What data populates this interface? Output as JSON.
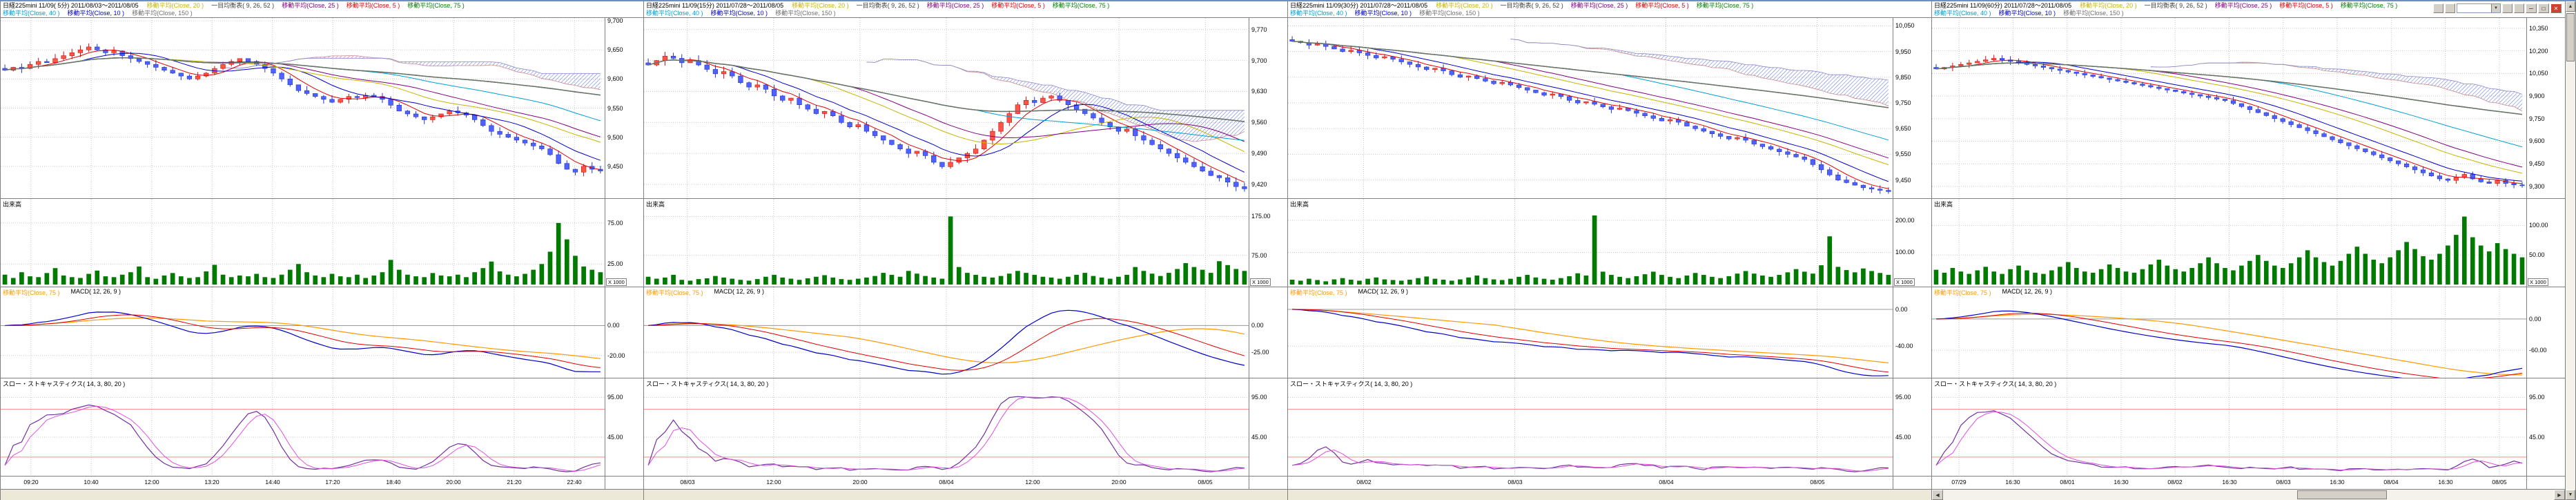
{
  "app": {
    "background": "#ffffff",
    "frame_color": "#6f8fc0"
  },
  "toolbar": {
    "combo_arrow": "▼",
    "window_buttons": [
      {
        "name": "minimize",
        "glyph": "─"
      },
      {
        "name": "maximize",
        "glyph": "□"
      },
      {
        "name": "close",
        "glyph": "✕"
      }
    ]
  },
  "scrollbar": {
    "left": "◀",
    "right": "▶",
    "up": "▲",
    "down": "▼"
  },
  "labels": {
    "volume": "出来高",
    "volume_unit": "X 1000",
    "macd_ma": "移動平均(Close, 75 )",
    "macd": "MACD( 12, 26, 9 )",
    "stoch": "スロー・ストキャスティクス( 14, 3, 80, 20 )"
  },
  "legend": {
    "row1": [
      {
        "label": "移動平均(Close, 20 )",
        "color": "#c8b400"
      },
      {
        "label": "一目均衡表( 9, 26, 52 )",
        "color": "#404040"
      },
      {
        "label": "移動平均(Close, 25 )",
        "color": "#800080"
      },
      {
        "label": "移動平均(Close, 5 )",
        "color": "#e00000"
      },
      {
        "label": "移動平均(Close, 75 )",
        "color": "#008000"
      }
    ],
    "row2": [
      {
        "label": "移動平均(Close, 40 )",
        "color": "#00a0d0"
      },
      {
        "label": "移動平均(Close, 10 )",
        "color": "#0000cc"
      },
      {
        "label": "移動平均(Close, 150 )",
        "color": "#707070"
      }
    ]
  },
  "ma_lines": [
    {
      "period": 5,
      "color": "#e00000"
    },
    {
      "period": 10,
      "color": "#0000cc"
    },
    {
      "period": 20,
      "color": "#c8b400"
    },
    {
      "period": 25,
      "color": "#800080"
    },
    {
      "period": 40,
      "color": "#00a0d0"
    },
    {
      "period": 75,
      "color": "#008000"
    },
    {
      "period": 150,
      "color": "#707070"
    }
  ],
  "indicators": {
    "ichimoku": {
      "tenkan": 9,
      "kijun": 26,
      "senkou": 52
    },
    "macd": {
      "fast": 12,
      "slow": 26,
      "signal": 9
    },
    "slow_stochastics": {
      "k": 14,
      "slowing": 3,
      "upper": 80,
      "lower": 20
    }
  },
  "chart_data": [
    {
      "type": "candlestick",
      "title": "日経225mini 11/09( 5分)  2011/08/03～2011/08/05",
      "interval": "5分",
      "closes": [
        9615,
        9620,
        9618,
        9625,
        9630,
        9628,
        9635,
        9640,
        9645,
        9650,
        9655,
        9650,
        9645,
        9648,
        9640,
        9635,
        9630,
        9625,
        9620,
        9615,
        9610,
        9605,
        9600,
        9605,
        9610,
        9618,
        9625,
        9630,
        9635,
        9630,
        9625,
        9618,
        9610,
        9600,
        9590,
        9580,
        9575,
        9570,
        9565,
        9560,
        9565,
        9570,
        9568,
        9572,
        9570,
        9565,
        9555,
        9545,
        9540,
        9535,
        9530,
        9535,
        9540,
        9545,
        9542,
        9538,
        9530,
        9520,
        9510,
        9505,
        9500,
        9495,
        9490,
        9485,
        9480,
        9470,
        9455,
        9445,
        9440,
        9450,
        9445,
        9442
      ],
      "volumes": [
        12,
        8,
        15,
        10,
        9,
        14,
        20,
        11,
        9,
        8,
        13,
        17,
        10,
        9,
        12,
        15,
        22,
        9,
        7,
        11,
        14,
        10,
        8,
        9,
        16,
        24,
        12,
        9,
        11,
        10,
        13,
        9,
        8,
        12,
        18,
        25,
        15,
        11,
        9,
        13,
        10,
        9,
        12,
        8,
        11,
        15,
        30,
        18,
        12,
        10,
        9,
        14,
        11,
        10,
        12,
        9,
        15,
        20,
        28,
        16,
        12,
        10,
        13,
        18,
        25,
        40,
        75,
        55,
        35,
        22,
        18,
        15
      ],
      "candle_amp": 8,
      "price_range": [
        9400,
        9700
      ],
      "price_ticks": [
        {
          "v": 9700,
          "t": "9,700"
        },
        {
          "v": 9650,
          "t": "9,650"
        },
        {
          "v": 9600,
          "t": "9,600"
        },
        {
          "v": 9550,
          "t": "9,550"
        },
        {
          "v": 9500,
          "t": "9,500"
        },
        {
          "v": 9450,
          "t": "9,450"
        }
      ],
      "vol_max": 90,
      "vol_ticks": [
        {
          "v": 75,
          "t": "75.00"
        },
        {
          "v": 25,
          "t": "25.00"
        }
      ],
      "macd_range": [
        -32,
        20
      ],
      "macd_ticks": [
        {
          "v": 0,
          "t": "0.00"
        },
        {
          "v": -20,
          "t": "-20.00"
        }
      ],
      "stoch_ticks": [
        {
          "v": 95,
          "t": "95.00"
        },
        {
          "v": 45,
          "t": "45.00"
        }
      ],
      "stoch_refs": [
        80,
        20
      ],
      "x_labels": [
        "09:20",
        "10:40",
        "12:00",
        "13:20",
        "14:40",
        "17:20",
        "18:40",
        "20:00",
        "21:20",
        "22:40"
      ]
    },
    {
      "type": "candlestick",
      "title": "日経225mini 11/09(15分)  2011/07/28～2011/08/05",
      "interval": "15分",
      "closes": [
        9690,
        9700,
        9710,
        9705,
        9695,
        9700,
        9690,
        9680,
        9670,
        9675,
        9665,
        9650,
        9640,
        9645,
        9635,
        9620,
        9610,
        9615,
        9600,
        9590,
        9580,
        9585,
        9575,
        9560,
        9550,
        9555,
        9540,
        9530,
        9520,
        9510,
        9500,
        9490,
        9495,
        9485,
        9470,
        9460,
        9470,
        9480,
        9490,
        9500,
        9520,
        9540,
        9560,
        9580,
        9600,
        9610,
        9605,
        9615,
        9620,
        9610,
        9600,
        9590,
        9580,
        9570,
        9560,
        9550,
        9540,
        9545,
        9530,
        9520,
        9510,
        9500,
        9490,
        9480,
        9470,
        9460,
        9450,
        9440,
        9435,
        9425,
        9415,
        9410
      ],
      "volumes": [
        20,
        15,
        18,
        25,
        12,
        10,
        14,
        16,
        22,
        18,
        15,
        12,
        10,
        14,
        20,
        25,
        18,
        15,
        12,
        16,
        20,
        24,
        18,
        14,
        12,
        15,
        18,
        22,
        30,
        25,
        20,
        35,
        28,
        22,
        18,
        15,
        175,
        45,
        30,
        25,
        20,
        18,
        22,
        28,
        35,
        30,
        25,
        20,
        18,
        15,
        20,
        25,
        30,
        22,
        18,
        15,
        20,
        25,
        45,
        35,
        28,
        22,
        30,
        40,
        55,
        45,
        38,
        30,
        60,
        50,
        40,
        35
      ],
      "candle_amp": 12,
      "price_range": [
        9395,
        9790
      ],
      "price_ticks": [
        {
          "v": 9770,
          "t": "9,770"
        },
        {
          "v": 9700,
          "t": "9,700"
        },
        {
          "v": 9630,
          "t": "9,630"
        },
        {
          "v": 9560,
          "t": "9,560"
        },
        {
          "v": 9490,
          "t": "9,490"
        },
        {
          "v": 9420,
          "t": "9,420"
        }
      ],
      "vol_max": 190,
      "vol_ticks": [
        {
          "v": 175,
          "t": "175.00"
        },
        {
          "v": 75,
          "t": "75.00"
        }
      ],
      "macd_range": [
        -45,
        28
      ],
      "macd_ticks": [
        {
          "v": 0,
          "t": "0.00"
        },
        {
          "v": -25,
          "t": "-25.00"
        }
      ],
      "stoch_ticks": [
        {
          "v": 95,
          "t": "95.00"
        },
        {
          "v": 45,
          "t": "45.00"
        }
      ],
      "stoch_refs": [
        80,
        20
      ],
      "x_labels": [
        "08/03",
        "12:00",
        "20:00",
        "08/04",
        "12:00",
        "20:00",
        "08/05"
      ]
    },
    {
      "type": "candlestick",
      "title": "日経225mini 11/09(30分)  2011/07/28～2011/08/05",
      "interval": "30分",
      "closes": [
        9990,
        9985,
        9975,
        9980,
        9970,
        9960,
        9950,
        9955,
        9945,
        9935,
        9925,
        9930,
        9920,
        9910,
        9900,
        9890,
        9880,
        9885,
        9875,
        9860,
        9850,
        9855,
        9845,
        9835,
        9825,
        9830,
        9820,
        9810,
        9800,
        9790,
        9780,
        9785,
        9775,
        9760,
        9750,
        9755,
        9745,
        9735,
        9725,
        9730,
        9720,
        9710,
        9700,
        9690,
        9680,
        9685,
        9675,
        9660,
        9650,
        9640,
        9630,
        9620,
        9610,
        9615,
        9605,
        9590,
        9580,
        9570,
        9560,
        9550,
        9540,
        9530,
        9510,
        9490,
        9470,
        9450,
        9440,
        9430,
        9420,
        9415,
        9410,
        9405
      ],
      "volumes": [
        15,
        12,
        18,
        14,
        10,
        16,
        20,
        15,
        12,
        18,
        22,
        16,
        14,
        12,
        15,
        20,
        25,
        18,
        15,
        12,
        16,
        22,
        28,
        20,
        16,
        14,
        18,
        24,
        30,
        22,
        18,
        15,
        20,
        26,
        35,
        28,
        215,
        40,
        30,
        24,
        20,
        26,
        32,
        40,
        30,
        24,
        20,
        28,
        36,
        30,
        24,
        20,
        26,
        34,
        42,
        34,
        28,
        24,
        30,
        38,
        48,
        40,
        34,
        60,
        150,
        55,
        45,
        38,
        50,
        42,
        36,
        30
      ],
      "candle_amp": 16,
      "price_range": [
        9390,
        10070
      ],
      "price_ticks": [
        {
          "v": 10050,
          "t": "10,050"
        },
        {
          "v": 9950,
          "t": "9,950"
        },
        {
          "v": 9850,
          "t": "9,850"
        },
        {
          "v": 9750,
          "t": "9,750"
        },
        {
          "v": 9650,
          "t": "9,650"
        },
        {
          "v": 9550,
          "t": "9,550"
        },
        {
          "v": 9450,
          "t": "9,450"
        }
      ],
      "vol_max": 230,
      "vol_ticks": [
        {
          "v": 200,
          "t": "200.00"
        },
        {
          "v": 100,
          "t": "100.00"
        }
      ],
      "macd_range": [
        -70,
        15
      ],
      "macd_ticks": [
        {
          "v": 0,
          "t": "0.00"
        },
        {
          "v": -40,
          "t": "-40.00"
        }
      ],
      "stoch_ticks": [
        {
          "v": 95,
          "t": "95.00"
        },
        {
          "v": 45,
          "t": "45.00"
        }
      ],
      "stoch_refs": [
        80,
        20
      ],
      "x_labels": [
        "08/02",
        "08/03",
        "08/04",
        "08/05"
      ]
    },
    {
      "type": "candlestick",
      "title": "日経225mini 11/09(60分)  2011/07/28～2011/08/05",
      "interval": "60分",
      "closes": [
        10080,
        10090,
        10100,
        10110,
        10120,
        10130,
        10140,
        10150,
        10140,
        10130,
        10120,
        10110,
        10100,
        10090,
        10080,
        10070,
        10060,
        10050,
        10040,
        10030,
        10020,
        10010,
        10000,
        9990,
        9980,
        9970,
        9960,
        9950,
        9940,
        9930,
        9920,
        9910,
        9900,
        9890,
        9880,
        9870,
        9850,
        9830,
        9810,
        9790,
        9770,
        9750,
        9730,
        9710,
        9690,
        9670,
        9650,
        9630,
        9610,
        9590,
        9570,
        9550,
        9530,
        9510,
        9490,
        9470,
        9450,
        9430,
        9410,
        9390,
        9370,
        9350,
        9340,
        9360,
        9380,
        9350,
        9330,
        9320,
        9340,
        9320,
        9310,
        9305
      ],
      "volumes": [
        25,
        20,
        28,
        22,
        18,
        24,
        30,
        22,
        18,
        26,
        32,
        24,
        20,
        18,
        24,
        30,
        38,
        28,
        22,
        20,
        26,
        34,
        28,
        22,
        20,
        26,
        34,
        42,
        32,
        26,
        22,
        28,
        36,
        46,
        36,
        28,
        24,
        32,
        40,
        50,
        40,
        32,
        28,
        36,
        46,
        58,
        46,
        38,
        32,
        40,
        52,
        64,
        52,
        42,
        36,
        46,
        58,
        72,
        60,
        48,
        42,
        52,
        66,
        84,
        115,
        80,
        66,
        56,
        70,
        60,
        52,
        46
      ],
      "candle_amp": 26,
      "price_range": [
        9240,
        10400
      ],
      "price_ticks": [
        {
          "v": 10350,
          "t": "10,350"
        },
        {
          "v": 10200,
          "t": "10,200"
        },
        {
          "v": 10050,
          "t": "10,050"
        },
        {
          "v": 9900,
          "t": "9,900"
        },
        {
          "v": 9750,
          "t": "9,750"
        },
        {
          "v": 9600,
          "t": "9,600"
        },
        {
          "v": 9450,
          "t": "9,450"
        },
        {
          "v": 9300,
          "t": "9,300"
        }
      ],
      "vol_max": 125,
      "vol_ticks": [
        {
          "v": 100,
          "t": "100.00"
        },
        {
          "v": 50,
          "t": "50.00"
        }
      ],
      "macd_range": [
        -105,
        45
      ],
      "macd_ticks": [
        {
          "v": 0,
          "t": "0.00"
        },
        {
          "v": -60,
          "t": "-60.00"
        }
      ],
      "stoch_ticks": [
        {
          "v": 95,
          "t": "95.00"
        },
        {
          "v": 45,
          "t": "45.00"
        }
      ],
      "stoch_refs": [
        80,
        20
      ],
      "x_labels": [
        "07/29",
        "16:30",
        "08/01",
        "16:30",
        "08/02",
        "16:30",
        "08/03",
        "16:30",
        "08/04",
        "16:30",
        "08/05"
      ]
    }
  ]
}
